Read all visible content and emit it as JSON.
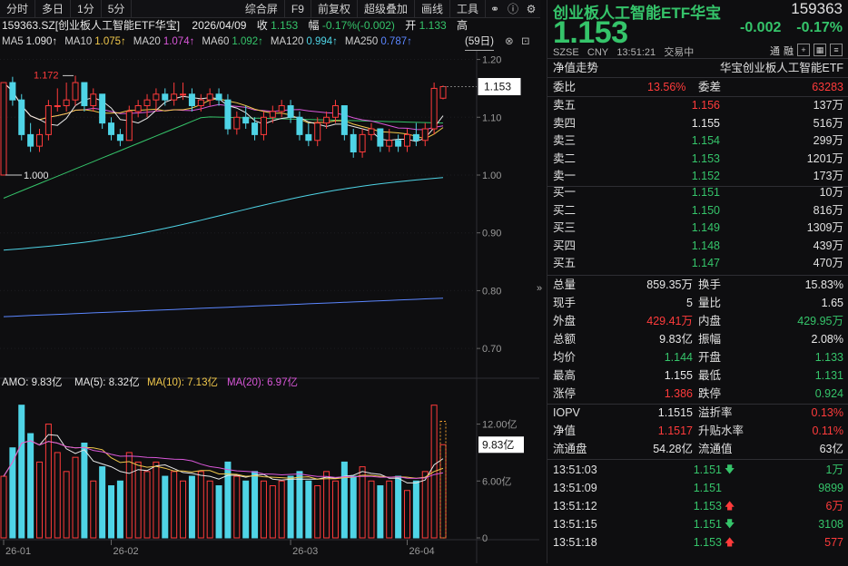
{
  "toolbar": {
    "items": [
      "分时",
      "多日",
      "1分",
      "5分",
      "综合屏",
      "F9",
      "前复权",
      "超级叠加",
      "画线",
      "工具"
    ],
    "right_label": "高"
  },
  "title": {
    "name": "159363.SZ[创业板人工智能ETF华宝]",
    "date": "2026/04/09",
    "close_label": "收",
    "close_value": "1.153",
    "range_label": "幅",
    "change_text": "-0.17%(-0.002)",
    "open_label": "开",
    "open_value": "1.133"
  },
  "ma": {
    "period_label": "(59日)",
    "items": [
      {
        "label": "MA5",
        "value": "1.090↑",
        "color": "#e8e8e8"
      },
      {
        "label": "MA10",
        "value": "1.075↑",
        "color": "#f2c94c"
      },
      {
        "label": "MA20",
        "value": "1.074↑",
        "color": "#d957d9"
      },
      {
        "label": "MA60",
        "value": "1.092↑",
        "color": "#35c46a"
      },
      {
        "label": "MA120",
        "value": "0.994↑",
        "color": "#4fd4e6"
      },
      {
        "label": "MA250",
        "value": "0.787↑",
        "color": "#5b86ff"
      }
    ]
  },
  "price_chart": {
    "y_ticks": [
      "1.20",
      "1.10",
      "1.00",
      "0.90",
      "0.80",
      "0.70"
    ],
    "current_price_tag": "1.153",
    "high_annotation": "1.172",
    "low_annotation": "1.000"
  },
  "volume": {
    "header": {
      "amo": "AMO: 9.83亿",
      "ma5": "MA(5): 8.32亿",
      "ma10": "MA(10): 7.13亿",
      "ma20": "MA(20): 6.97亿"
    },
    "y_ticks": [
      "12.00亿",
      "6.00亿",
      "0"
    ],
    "current_tag": "9.83亿"
  },
  "x_labels": [
    "26-01",
    "26-02",
    "26-03",
    "26-04"
  ],
  "right_panel": {
    "name": "创业板人工智能ETF华宝",
    "code": "159363",
    "price": "1.153",
    "change": "-0.002",
    "change_pct": "-0.17%",
    "market": "SZSE",
    "currency": "CNY",
    "time": "13:51:21",
    "status": "交易中",
    "tag1": "通",
    "tag2": "融",
    "nav_trend_label": "净值走势",
    "nav_trend_name": "华宝创业板人工智能ETF",
    "webi": {
      "label": "委比",
      "value": "13.56%",
      "label2": "委差",
      "value2": "63283"
    },
    "asks": [
      {
        "label": "卖五",
        "price": "1.156",
        "vol": "137万",
        "color": "#ff3b3b"
      },
      {
        "label": "卖四",
        "price": "1.155",
        "vol": "516万",
        "color": "#e8e8e8"
      },
      {
        "label": "卖三",
        "price": "1.154",
        "vol": "299万",
        "color": "#35c46a"
      },
      {
        "label": "卖二",
        "price": "1.153",
        "vol": "1201万",
        "color": "#35c46a"
      },
      {
        "label": "卖一",
        "price": "1.152",
        "vol": "173万",
        "color": "#35c46a"
      }
    ],
    "bids": [
      {
        "label": "买一",
        "price": "1.151",
        "vol": "10万",
        "color": "#35c46a"
      },
      {
        "label": "买二",
        "price": "1.150",
        "vol": "816万",
        "color": "#35c46a"
      },
      {
        "label": "买三",
        "price": "1.149",
        "vol": "1309万",
        "color": "#35c46a"
      },
      {
        "label": "买四",
        "price": "1.148",
        "vol": "439万",
        "color": "#35c46a"
      },
      {
        "label": "买五",
        "price": "1.147",
        "vol": "470万",
        "color": "#35c46a"
      }
    ],
    "stats": [
      {
        "l1": "总量",
        "v1": "859.35万",
        "c1": "#e8e8e8",
        "l2": "换手",
        "v2": "15.83%",
        "c2": "#e8e8e8"
      },
      {
        "l1": "现手",
        "v1": "5",
        "c1": "#e8e8e8",
        "l2": "量比",
        "v2": "1.65",
        "c2": "#e8e8e8"
      },
      {
        "l1": "外盘",
        "v1": "429.41万",
        "c1": "#ff3b3b",
        "l2": "内盘",
        "v2": "429.95万",
        "c2": "#35c46a"
      },
      {
        "l1": "总额",
        "v1": "9.83亿",
        "c1": "#e8e8e8",
        "l2": "振幅",
        "v2": "2.08%",
        "c2": "#e8e8e8"
      },
      {
        "l1": "均价",
        "v1": "1.144",
        "c1": "#35c46a",
        "l2": "开盘",
        "v2": "1.133",
        "c2": "#35c46a"
      },
      {
        "l1": "最高",
        "v1": "1.155",
        "c1": "#e8e8e8",
        "l2": "最低",
        "v2": "1.131",
        "c2": "#35c46a"
      },
      {
        "l1": "涨停",
        "v1": "1.386",
        "c1": "#ff3b3b",
        "l2": "跌停",
        "v2": "0.924",
        "c2": "#35c46a"
      }
    ],
    "iopv": [
      {
        "l1": "IOPV",
        "v1": "1.1515",
        "c1": "#e8e8e8",
        "l2": "溢折率",
        "v2": "0.13%",
        "c2": "#ff3b3b"
      },
      {
        "l1": "净值",
        "v1": "1.1517",
        "c1": "#ff3b3b",
        "l2": "升贴水率",
        "v2": "0.11%",
        "c2": "#ff3b3b"
      },
      {
        "l1": "流通盘",
        "v1": "54.28亿",
        "c1": "#e8e8e8",
        "l2": "流通值",
        "v2": "63亿",
        "c2": "#e8e8e8"
      }
    ],
    "ticks": [
      {
        "time": "13:51:03",
        "price": "1.151",
        "pcolor": "#35c46a",
        "arrow": "🡇",
        "acolor": "#35c46a",
        "vol": "1万",
        "vcolor": "#35c46a"
      },
      {
        "time": "13:51:09",
        "price": "1.151",
        "pcolor": "#35c46a",
        "arrow": "",
        "acolor": "#35c46a",
        "vol": "9899",
        "vcolor": "#35c46a"
      },
      {
        "time": "13:51:12",
        "price": "1.153",
        "pcolor": "#35c46a",
        "arrow": "🡅",
        "acolor": "#ff3b3b",
        "vol": "6万",
        "vcolor": "#ff3b3b"
      },
      {
        "time": "13:51:15",
        "price": "1.151",
        "pcolor": "#35c46a",
        "arrow": "🡇",
        "acolor": "#35c46a",
        "vol": "3108",
        "vcolor": "#35c46a"
      },
      {
        "time": "13:51:18",
        "price": "1.153",
        "pcolor": "#35c46a",
        "arrow": "🡅",
        "acolor": "#ff3b3b",
        "vol": "577",
        "vcolor": "#ff3b3b"
      }
    ]
  },
  "candles": [
    [
      1.0,
      1.16,
      1.0,
      1.16
    ],
    [
      1.16,
      1.17,
      1.12,
      1.13
    ],
    [
      1.13,
      1.14,
      1.06,
      1.07
    ],
    [
      1.07,
      1.09,
      1.04,
      1.05
    ],
    [
      1.05,
      1.08,
      1.04,
      1.07
    ],
    [
      1.07,
      1.13,
      1.06,
      1.12
    ],
    [
      1.12,
      1.15,
      1.11,
      1.12
    ],
    [
      1.12,
      1.16,
      1.11,
      1.13
    ],
    [
      1.13,
      1.172,
      1.12,
      1.16
    ],
    [
      1.16,
      1.16,
      1.11,
      1.12
    ],
    [
      1.12,
      1.15,
      1.11,
      1.14
    ],
    [
      1.14,
      1.14,
      1.08,
      1.09
    ],
    [
      1.09,
      1.1,
      1.06,
      1.07
    ],
    [
      1.07,
      1.08,
      1.05,
      1.06
    ],
    [
      1.06,
      1.12,
      1.06,
      1.11
    ],
    [
      1.11,
      1.13,
      1.1,
      1.12
    ],
    [
      1.12,
      1.14,
      1.1,
      1.13
    ],
    [
      1.13,
      1.15,
      1.11,
      1.14
    ],
    [
      1.14,
      1.15,
      1.12,
      1.13
    ],
    [
      1.13,
      1.16,
      1.12,
      1.14
    ],
    [
      1.14,
      1.16,
      1.13,
      1.14
    ],
    [
      1.14,
      1.15,
      1.11,
      1.12
    ],
    [
      1.12,
      1.14,
      1.11,
      1.13
    ],
    [
      1.13,
      1.15,
      1.12,
      1.14
    ],
    [
      1.14,
      1.15,
      1.12,
      1.13
    ],
    [
      1.13,
      1.14,
      1.07,
      1.08
    ],
    [
      1.08,
      1.11,
      1.07,
      1.1
    ],
    [
      1.1,
      1.12,
      1.08,
      1.09
    ],
    [
      1.09,
      1.1,
      1.06,
      1.07
    ],
    [
      1.07,
      1.11,
      1.06,
      1.1
    ],
    [
      1.1,
      1.12,
      1.09,
      1.11
    ],
    [
      1.11,
      1.13,
      1.1,
      1.12
    ],
    [
      1.12,
      1.13,
      1.09,
      1.1
    ],
    [
      1.1,
      1.11,
      1.06,
      1.07
    ],
    [
      1.07,
      1.09,
      1.05,
      1.06
    ],
    [
      1.06,
      1.1,
      1.05,
      1.09
    ],
    [
      1.09,
      1.11,
      1.08,
      1.1
    ],
    [
      1.1,
      1.13,
      1.09,
      1.12
    ],
    [
      1.12,
      1.12,
      1.06,
      1.07
    ],
    [
      1.07,
      1.08,
      1.03,
      1.04
    ],
    [
      1.04,
      1.08,
      1.03,
      1.07
    ],
    [
      1.07,
      1.09,
      1.06,
      1.08
    ],
    [
      1.08,
      1.08,
      1.04,
      1.05
    ],
    [
      1.05,
      1.08,
      1.04,
      1.06
    ],
    [
      1.06,
      1.07,
      1.04,
      1.05
    ],
    [
      1.05,
      1.08,
      1.04,
      1.07
    ],
    [
      1.07,
      1.09,
      1.05,
      1.06
    ],
    [
      1.06,
      1.09,
      1.05,
      1.08
    ],
    [
      1.08,
      1.16,
      1.07,
      1.15
    ],
    [
      1.133,
      1.155,
      1.131,
      1.153
    ]
  ],
  "volumes": [
    6.5,
    9.5,
    14.0,
    11.0,
    8.0,
    12.0,
    9.0,
    7.0,
    8.5,
    10.0,
    6.0,
    7.5,
    5.5,
    6.0,
    9.0,
    8.0,
    7.0,
    8.0,
    6.5,
    7.0,
    6.0,
    6.5,
    7.0,
    6.0,
    5.5,
    8.0,
    6.5,
    6.0,
    7.0,
    6.0,
    5.5,
    6.0,
    6.5,
    7.0,
    6.0,
    5.5,
    7.0,
    6.0,
    8.0,
    6.5,
    7.5,
    6.0,
    5.5,
    6.0,
    6.5,
    5.0,
    6.0,
    7.0,
    14.0,
    9.83
  ]
}
